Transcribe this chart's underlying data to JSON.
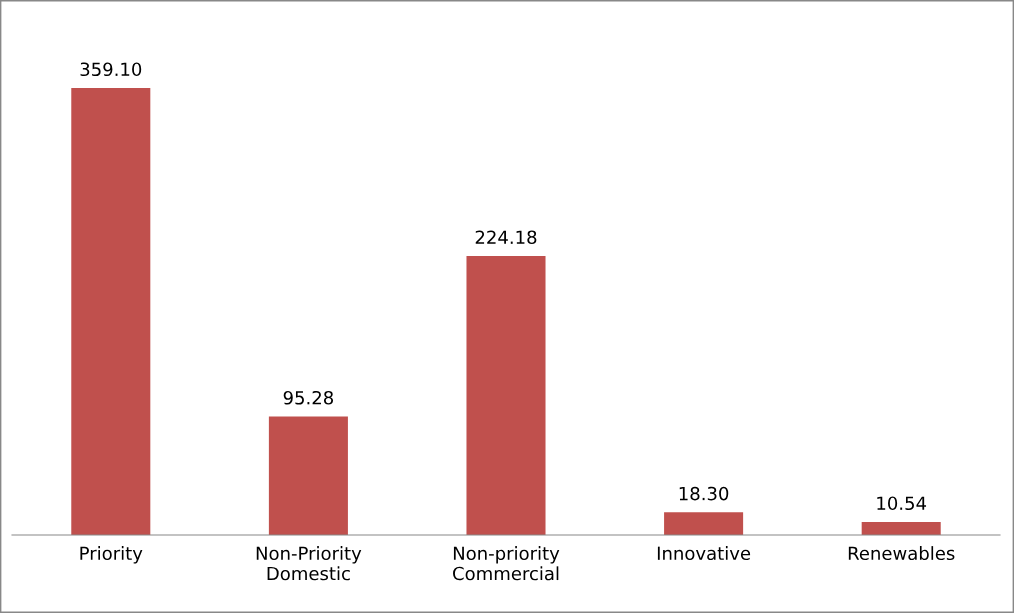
{
  "chart_data": {
    "type": "bar",
    "categories": [
      "Priority",
      "Non-Priority\nDomestic",
      "Non-priority\nCommercial",
      "Innovative",
      "Renewables"
    ],
    "values": [
      359.1,
      95.28,
      224.18,
      18.3,
      10.54
    ],
    "value_labels": [
      "359.10",
      "95.28",
      "224.18",
      "18.30",
      "10.54"
    ],
    "color": "#c0504d"
  }
}
